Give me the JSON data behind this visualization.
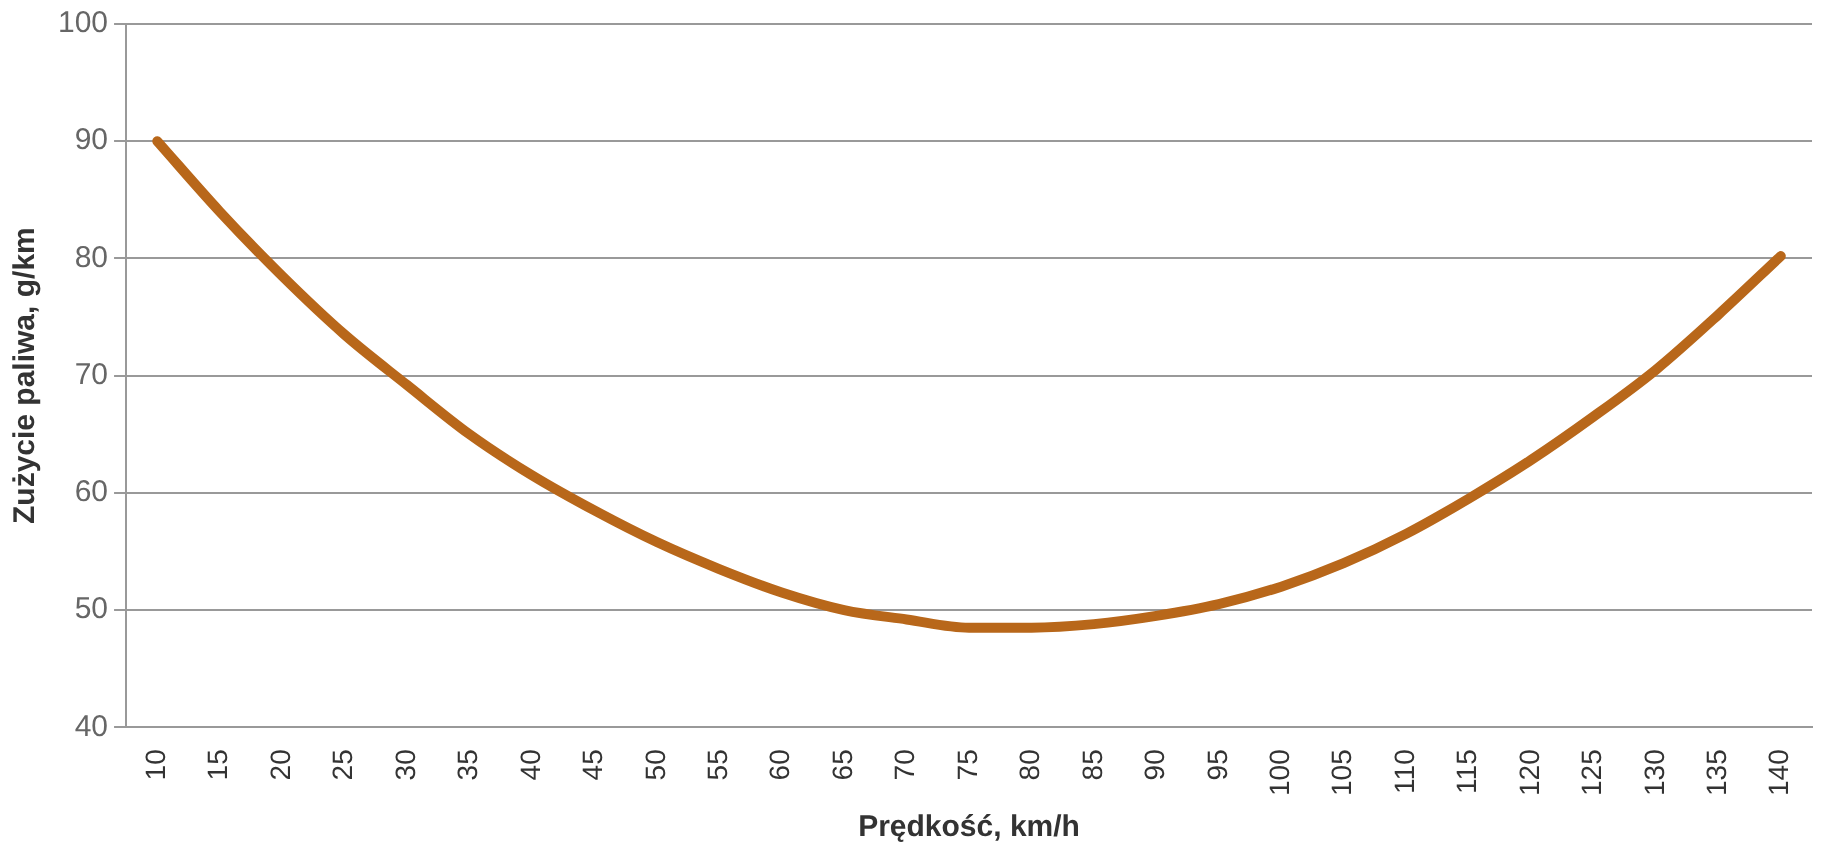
{
  "chart_data": {
    "type": "line",
    "xlabel": "Prędkość, km/h",
    "ylabel": "Zużycie paliwa, g/km",
    "categories": [
      "10",
      "15",
      "20",
      "25",
      "30",
      "35",
      "40",
      "45",
      "50",
      "55",
      "60",
      "65",
      "70",
      "75",
      "80",
      "85",
      "90",
      "95",
      "100",
      "105",
      "110",
      "115",
      "120",
      "125",
      "130",
      "135",
      "140"
    ],
    "series": [
      {
        "color": "#b8671a",
        "values": [
          90,
          84,
          78.5,
          73.5,
          69.2,
          65,
          61.5,
          58.5,
          55.8,
          53.5,
          51.5,
          50,
          49.2,
          48.5,
          48.5,
          48.8,
          49.5,
          50.5,
          52,
          54,
          56.5,
          59.5,
          62.8,
          66.5,
          70.5,
          75.2,
          80.2
        ]
      }
    ],
    "ylim": [
      40,
      100
    ],
    "yticks": [
      40,
      50,
      60,
      70,
      80,
      90,
      100
    ],
    "grid": "y",
    "legend": false,
    "marker": "none",
    "line_style": "solid"
  }
}
